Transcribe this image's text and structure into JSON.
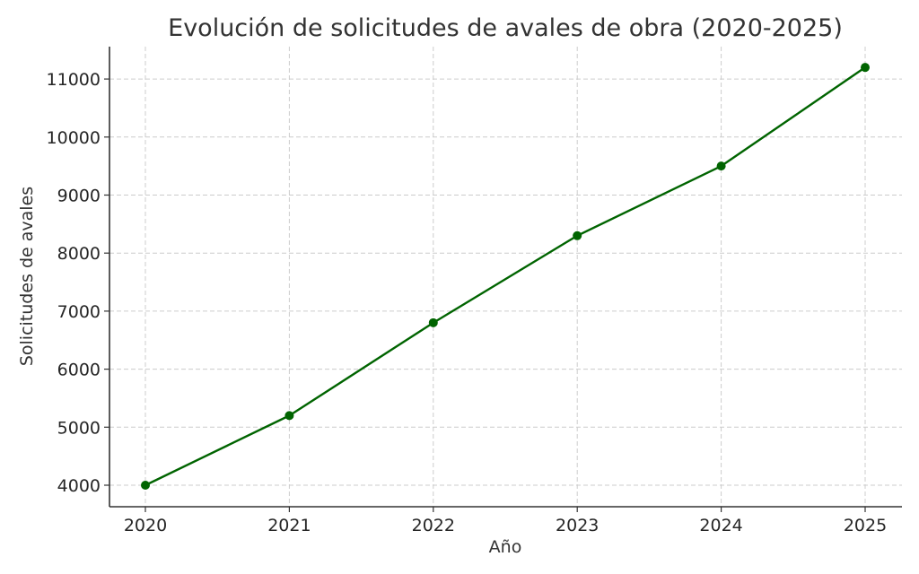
{
  "chart_data": {
    "type": "line",
    "title": "Evolución de solicitudes de avales de obra (2020-2025)",
    "xlabel": "Año",
    "ylabel": "Solicitudes de avales",
    "categories": [
      "2020",
      "2021",
      "2022",
      "2023",
      "2024",
      "2025"
    ],
    "series": [
      {
        "name": "Solicitudes de avales",
        "values": [
          4000,
          5200,
          6800,
          8300,
          9500,
          11200
        ],
        "color": "#006400",
        "marker": "circle"
      }
    ],
    "y_ticks": [
      4000,
      5000,
      6000,
      7000,
      8000,
      9000,
      10000,
      11000
    ],
    "ylim": [
      3650,
      11550
    ],
    "grid": true,
    "legend": "none"
  }
}
